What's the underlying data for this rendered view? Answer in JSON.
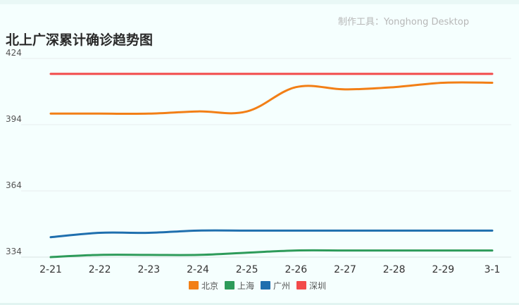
{
  "watermark": "制作工具：Yonghong Desktop",
  "chart_data": {
    "type": "line",
    "title": "北上广深累计确诊趋势图",
    "xlabel": "",
    "ylabel": "",
    "categories": [
      "2-21",
      "2-22",
      "2-23",
      "2-24",
      "2-25",
      "2-26",
      "2-27",
      "2-28",
      "2-29",
      "3-1"
    ],
    "y_ticks": [
      "424",
      "394",
      "364",
      "334"
    ],
    "ylim": [
      334,
      424
    ],
    "grid": true,
    "legend_position": "bottom",
    "series": [
      {
        "name": "北京",
        "color": "#f27f16",
        "values": [
          399,
          399,
          399,
          400,
          400,
          411,
          410,
          411,
          413,
          413
        ]
      },
      {
        "name": "上海",
        "color": "#2e9b5a",
        "values": [
          334,
          335,
          335,
          335,
          336,
          337,
          337,
          337,
          337,
          337
        ]
      },
      {
        "name": "广州",
        "color": "#1f6fae",
        "values": [
          343,
          345,
          345,
          346,
          346,
          346,
          346,
          346,
          346,
          346
        ]
      },
      {
        "name": "深圳",
        "color": "#f24a4a",
        "values": [
          417,
          417,
          417,
          417,
          417,
          417,
          417,
          417,
          417,
          417
        ]
      }
    ]
  }
}
